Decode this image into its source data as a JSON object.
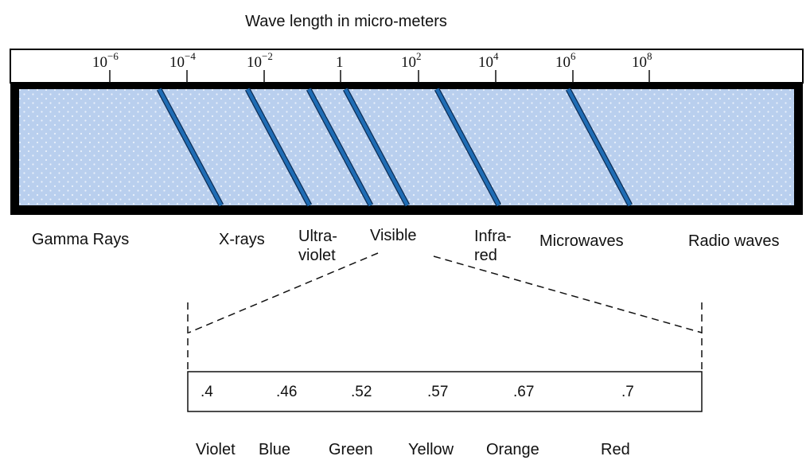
{
  "title": "Wave length in micro-meters",
  "scale_ticks": [
    {
      "base": "10",
      "exp": "−6"
    },
    {
      "base": "10",
      "exp": "−4"
    },
    {
      "base": "10",
      "exp": "−2"
    },
    {
      "base": "1",
      "exp": ""
    },
    {
      "base": "10",
      "exp": "2"
    },
    {
      "base": "10",
      "exp": "4"
    },
    {
      "base": "10",
      "exp": "6"
    },
    {
      "base": "10",
      "exp": "8"
    }
  ],
  "regions": [
    {
      "lines": [
        "Gamma Rays"
      ]
    },
    {
      "lines": [
        "X-rays"
      ]
    },
    {
      "lines": [
        "Ultra-",
        "violet"
      ]
    },
    {
      "lines": [
        "Visible"
      ]
    },
    {
      "lines": [
        "Infra-",
        "red"
      ]
    },
    {
      "lines": [
        "Microwaves"
      ]
    },
    {
      "lines": [
        "Radio waves"
      ]
    }
  ],
  "visible_wavelengths": [
    ".4",
    ".46",
    ".52",
    ".57",
    ".67",
    ".7"
  ],
  "visible_colors": [
    "Violet",
    "Blue",
    "Green",
    "Yellow",
    "Orange",
    "Red"
  ],
  "colors": {
    "band_fill": "#b9cfee",
    "band_dots": "#eaf1fb",
    "divider": "#1f6cb4",
    "frame": "#000000"
  }
}
